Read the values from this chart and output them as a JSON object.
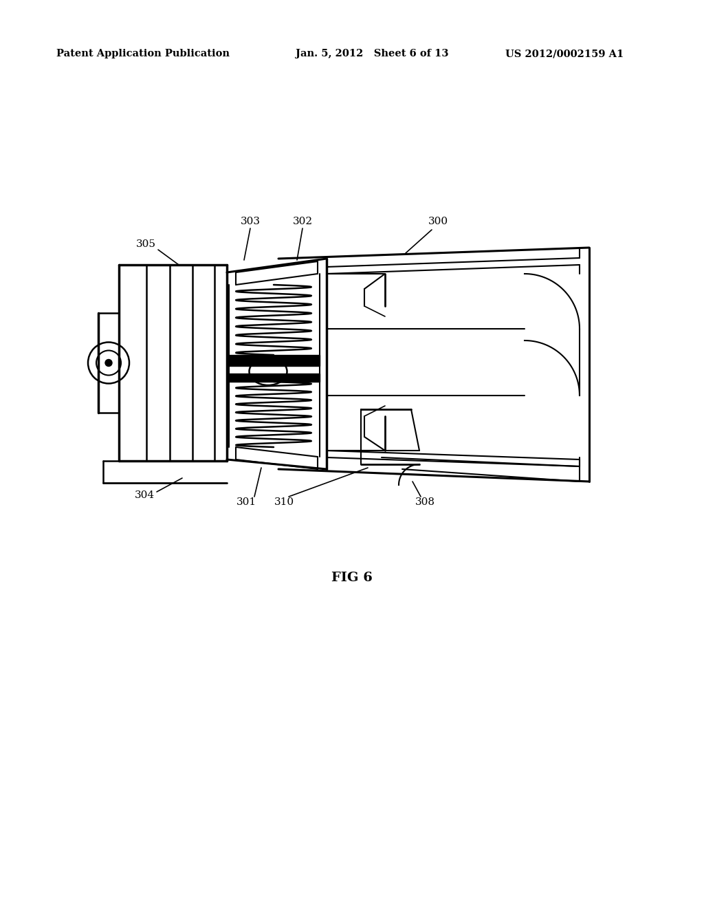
{
  "bg_color": "#ffffff",
  "header_left": "Patent Application Publication",
  "header_mid": "Jan. 5, 2012   Sheet 6 of 13",
  "header_right": "US 2012/0002159 A1",
  "figure_label": "FIG 6",
  "line_color": "#000000"
}
